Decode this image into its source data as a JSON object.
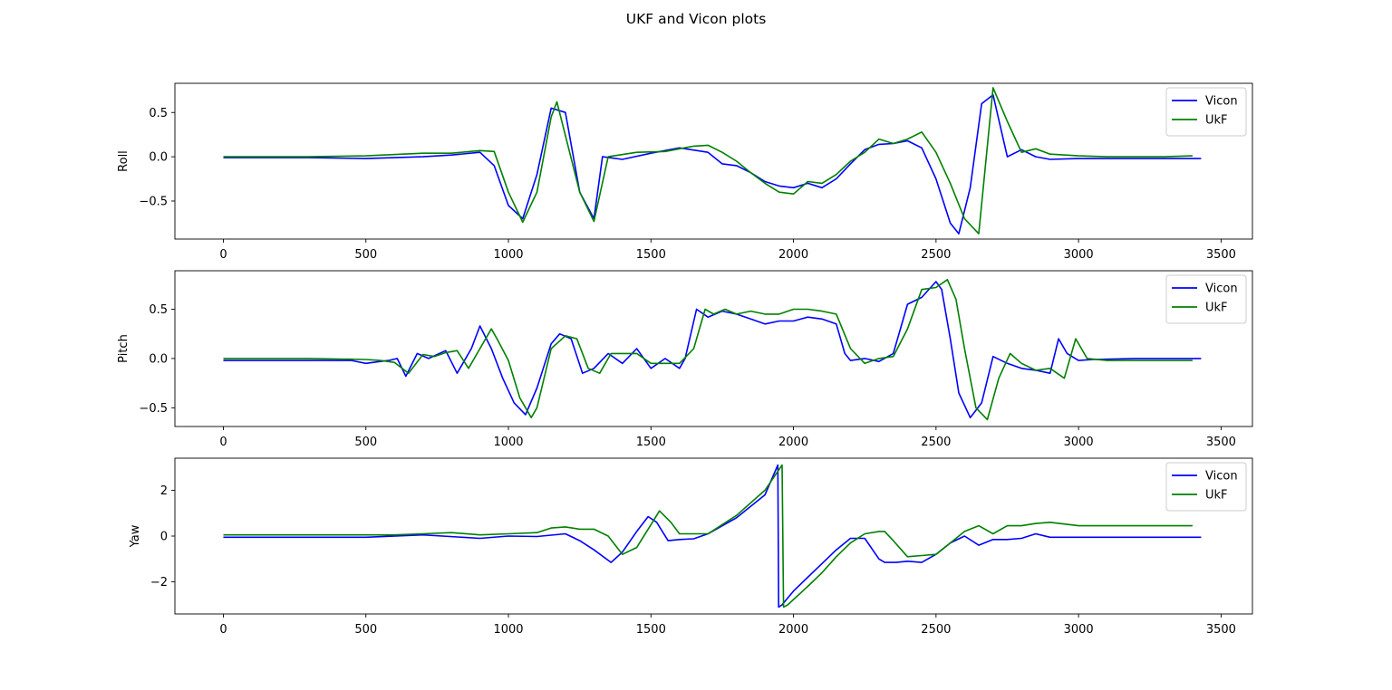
{
  "figure": {
    "title": "UKF and Vicon plots"
  },
  "chart_data": [
    {
      "type": "line",
      "ylabel": "Roll",
      "xlim": [
        -170,
        3610
      ],
      "ylim": [
        -0.93,
        0.83
      ],
      "xticks": [
        0,
        500,
        1000,
        1500,
        2000,
        2500,
        3000,
        3500
      ],
      "yticks": [
        0.5,
        0.0,
        -0.5
      ],
      "yticklabels": [
        "0.5",
        "0.0",
        "−0.5"
      ],
      "legend": "top-right",
      "series": [
        {
          "name": "Vicon",
          "color": "#0000ff",
          "x": [
            0,
            300,
            500,
            600,
            700,
            800,
            900,
            950,
            1000,
            1050,
            1100,
            1150,
            1200,
            1250,
            1300,
            1330,
            1400,
            1500,
            1600,
            1700,
            1750,
            1800,
            1850,
            1900,
            1950,
            2000,
            2050,
            2100,
            2150,
            2200,
            2250,
            2300,
            2350,
            2400,
            2450,
            2500,
            2550,
            2580,
            2620,
            2660,
            2700,
            2750,
            2800,
            2850,
            2900,
            3000,
            3100,
            3200,
            3300,
            3430
          ],
          "y": [
            -0.01,
            -0.01,
            -0.02,
            -0.01,
            0.0,
            0.02,
            0.05,
            -0.1,
            -0.55,
            -0.7,
            -0.2,
            0.55,
            0.5,
            -0.4,
            -0.7,
            0.0,
            -0.03,
            0.04,
            0.1,
            0.05,
            -0.08,
            -0.1,
            -0.18,
            -0.28,
            -0.33,
            -0.35,
            -0.3,
            -0.35,
            -0.25,
            -0.08,
            0.08,
            0.14,
            0.15,
            0.18,
            0.1,
            -0.25,
            -0.75,
            -0.87,
            -0.35,
            0.6,
            0.7,
            0.0,
            0.08,
            0.0,
            -0.03,
            -0.02,
            -0.02,
            -0.02,
            -0.02,
            -0.02
          ]
        },
        {
          "name": "UkF",
          "color": "#008000",
          "x": [
            0,
            300,
            500,
            700,
            800,
            900,
            950,
            1000,
            1050,
            1100,
            1150,
            1170,
            1250,
            1300,
            1350,
            1450,
            1550,
            1650,
            1700,
            1750,
            1800,
            1850,
            1900,
            1950,
            2000,
            2050,
            2100,
            2150,
            2200,
            2250,
            2300,
            2350,
            2400,
            2450,
            2500,
            2550,
            2600,
            2650,
            2700,
            2750,
            2800,
            2850,
            2900,
            3000,
            3100,
            3200,
            3300,
            3400
          ],
          "y": [
            0.0,
            0.0,
            0.01,
            0.04,
            0.04,
            0.07,
            0.06,
            -0.4,
            -0.74,
            -0.4,
            0.45,
            0.62,
            -0.4,
            -0.73,
            0.0,
            0.05,
            0.06,
            0.12,
            0.13,
            0.05,
            -0.05,
            -0.18,
            -0.3,
            -0.4,
            -0.42,
            -0.28,
            -0.3,
            -0.2,
            -0.05,
            0.05,
            0.2,
            0.15,
            0.2,
            0.28,
            0.05,
            -0.3,
            -0.7,
            -0.87,
            0.78,
            0.4,
            0.05,
            0.09,
            0.03,
            0.01,
            0.0,
            0.0,
            0.0,
            0.01
          ]
        }
      ]
    },
    {
      "type": "line",
      "ylabel": "Pitch",
      "xlim": [
        -170,
        3610
      ],
      "ylim": [
        -0.69,
        0.89
      ],
      "xticks": [
        0,
        500,
        1000,
        1500,
        2000,
        2500,
        3000,
        3500
      ],
      "yticks": [
        0.5,
        0.0,
        -0.5
      ],
      "yticklabels": [
        "0.5",
        "0.0",
        "−0.5"
      ],
      "legend": "top-right",
      "series": [
        {
          "name": "Vicon",
          "color": "#0000ff",
          "x": [
            0,
            300,
            450,
            500,
            550,
            580,
            610,
            640,
            680,
            720,
            780,
            820,
            870,
            900,
            940,
            980,
            1020,
            1060,
            1100,
            1150,
            1180,
            1220,
            1260,
            1300,
            1350,
            1400,
            1450,
            1500,
            1550,
            1600,
            1620,
            1660,
            1700,
            1750,
            1800,
            1850,
            1900,
            1950,
            2000,
            2050,
            2100,
            2150,
            2180,
            2200,
            2250,
            2300,
            2350,
            2400,
            2450,
            2500,
            2520,
            2550,
            2580,
            2620,
            2660,
            2700,
            2750,
            2800,
            2850,
            2900,
            2930,
            2960,
            3000,
            3050,
            3200,
            3300,
            3430
          ],
          "y": [
            -0.02,
            -0.02,
            -0.02,
            -0.05,
            -0.03,
            -0.02,
            0.0,
            -0.18,
            0.05,
            0.0,
            0.08,
            -0.15,
            0.1,
            0.33,
            0.1,
            -0.2,
            -0.45,
            -0.57,
            -0.3,
            0.15,
            0.25,
            0.2,
            -0.15,
            -0.1,
            0.05,
            -0.05,
            0.1,
            -0.1,
            0.0,
            -0.1,
            0.0,
            0.5,
            0.42,
            0.48,
            0.45,
            0.4,
            0.35,
            0.38,
            0.38,
            0.42,
            0.4,
            0.35,
            0.05,
            -0.02,
            0.0,
            -0.03,
            0.05,
            0.55,
            0.62,
            0.78,
            0.7,
            0.2,
            -0.35,
            -0.6,
            -0.45,
            0.02,
            -0.05,
            -0.1,
            -0.12,
            -0.15,
            0.2,
            0.05,
            -0.02,
            -0.01,
            0.0,
            0.0,
            0.0
          ]
        },
        {
          "name": "UkF",
          "color": "#008000",
          "x": [
            0,
            300,
            500,
            550,
            600,
            650,
            700,
            740,
            780,
            820,
            860,
            900,
            940,
            960,
            1000,
            1040,
            1080,
            1100,
            1150,
            1200,
            1240,
            1280,
            1320,
            1360,
            1400,
            1450,
            1500,
            1550,
            1600,
            1650,
            1690,
            1720,
            1760,
            1800,
            1850,
            1900,
            1950,
            2000,
            2050,
            2100,
            2150,
            2200,
            2250,
            2300,
            2350,
            2400,
            2450,
            2500,
            2540,
            2570,
            2600,
            2640,
            2680,
            2720,
            2760,
            2800,
            2850,
            2900,
            2950,
            2990,
            3030,
            3100,
            3200,
            3300,
            3400
          ],
          "y": [
            0.0,
            0.0,
            -0.01,
            -0.02,
            -0.04,
            -0.15,
            0.04,
            0.02,
            0.06,
            0.08,
            -0.1,
            0.1,
            0.3,
            0.2,
            -0.02,
            -0.4,
            -0.6,
            -0.5,
            0.1,
            0.23,
            0.2,
            -0.1,
            -0.15,
            0.05,
            0.05,
            0.05,
            -0.05,
            -0.05,
            -0.05,
            0.1,
            0.5,
            0.45,
            0.5,
            0.45,
            0.48,
            0.45,
            0.45,
            0.5,
            0.5,
            0.48,
            0.45,
            0.1,
            -0.05,
            0.0,
            0.02,
            0.3,
            0.7,
            0.72,
            0.8,
            0.6,
            0.1,
            -0.5,
            -0.62,
            -0.2,
            0.05,
            -0.05,
            -0.12,
            -0.1,
            -0.2,
            0.2,
            0.0,
            -0.02,
            -0.02,
            -0.02,
            -0.02
          ]
        }
      ]
    },
    {
      "type": "line",
      "ylabel": "Yaw",
      "xlim": [
        -170,
        3610
      ],
      "ylim": [
        -3.4,
        3.4
      ],
      "xticks": [
        0,
        500,
        1000,
        1500,
        2000,
        2500,
        3000,
        3500
      ],
      "yticks": [
        2,
        0,
        -2
      ],
      "yticklabels": [
        "2",
        "0",
        "−2"
      ],
      "legend": "top-right",
      "series": [
        {
          "name": "Vicon",
          "color": "#0000ff",
          "x": [
            0,
            500,
            700,
            900,
            1000,
            1100,
            1200,
            1250,
            1300,
            1360,
            1400,
            1450,
            1490,
            1520,
            1560,
            1600,
            1650,
            1700,
            1800,
            1900,
            1945,
            1948,
            1960,
            2000,
            2050,
            2100,
            2150,
            2200,
            2250,
            2300,
            2320,
            2360,
            2400,
            2450,
            2500,
            2550,
            2600,
            2650,
            2700,
            2750,
            2800,
            2850,
            2900,
            3000,
            3100,
            3430
          ],
          "y": [
            -0.05,
            -0.05,
            0.05,
            -0.1,
            0.0,
            -0.02,
            0.1,
            -0.2,
            -0.6,
            -1.15,
            -0.7,
            0.2,
            0.85,
            0.6,
            -0.2,
            -0.15,
            -0.12,
            0.1,
            0.8,
            1.8,
            3.1,
            -3.1,
            -3.0,
            -2.4,
            -1.8,
            -1.2,
            -0.6,
            -0.1,
            -0.1,
            -1.0,
            -1.15,
            -1.15,
            -1.1,
            -1.15,
            -0.8,
            -0.3,
            0.0,
            -0.4,
            -0.15,
            -0.15,
            -0.1,
            0.1,
            -0.05,
            -0.05,
            -0.05,
            -0.05
          ]
        },
        {
          "name": "UkF",
          "color": "#008000",
          "x": [
            0,
            500,
            600,
            700,
            800,
            900,
            1000,
            1100,
            1150,
            1200,
            1250,
            1300,
            1350,
            1400,
            1450,
            1500,
            1530,
            1570,
            1600,
            1700,
            1800,
            1900,
            1960,
            1965,
            1980,
            2050,
            2100,
            2150,
            2200,
            2250,
            2300,
            2320,
            2350,
            2400,
            2450,
            2500,
            2550,
            2600,
            2650,
            2700,
            2750,
            2800,
            2850,
            2900,
            3000,
            3100,
            3200,
            3400
          ],
          "y": [
            0.05,
            0.05,
            0.05,
            0.1,
            0.15,
            0.05,
            0.1,
            0.15,
            0.35,
            0.4,
            0.3,
            0.3,
            0.0,
            -0.8,
            -0.5,
            0.5,
            1.1,
            0.6,
            0.1,
            0.1,
            0.9,
            2.0,
            3.1,
            -3.1,
            -3.0,
            -2.2,
            -1.6,
            -0.9,
            -0.3,
            0.1,
            0.2,
            0.2,
            -0.2,
            -0.9,
            -0.85,
            -0.8,
            -0.3,
            0.2,
            0.45,
            0.1,
            0.45,
            0.45,
            0.55,
            0.6,
            0.45,
            0.45,
            0.45,
            0.45
          ]
        }
      ]
    }
  ]
}
